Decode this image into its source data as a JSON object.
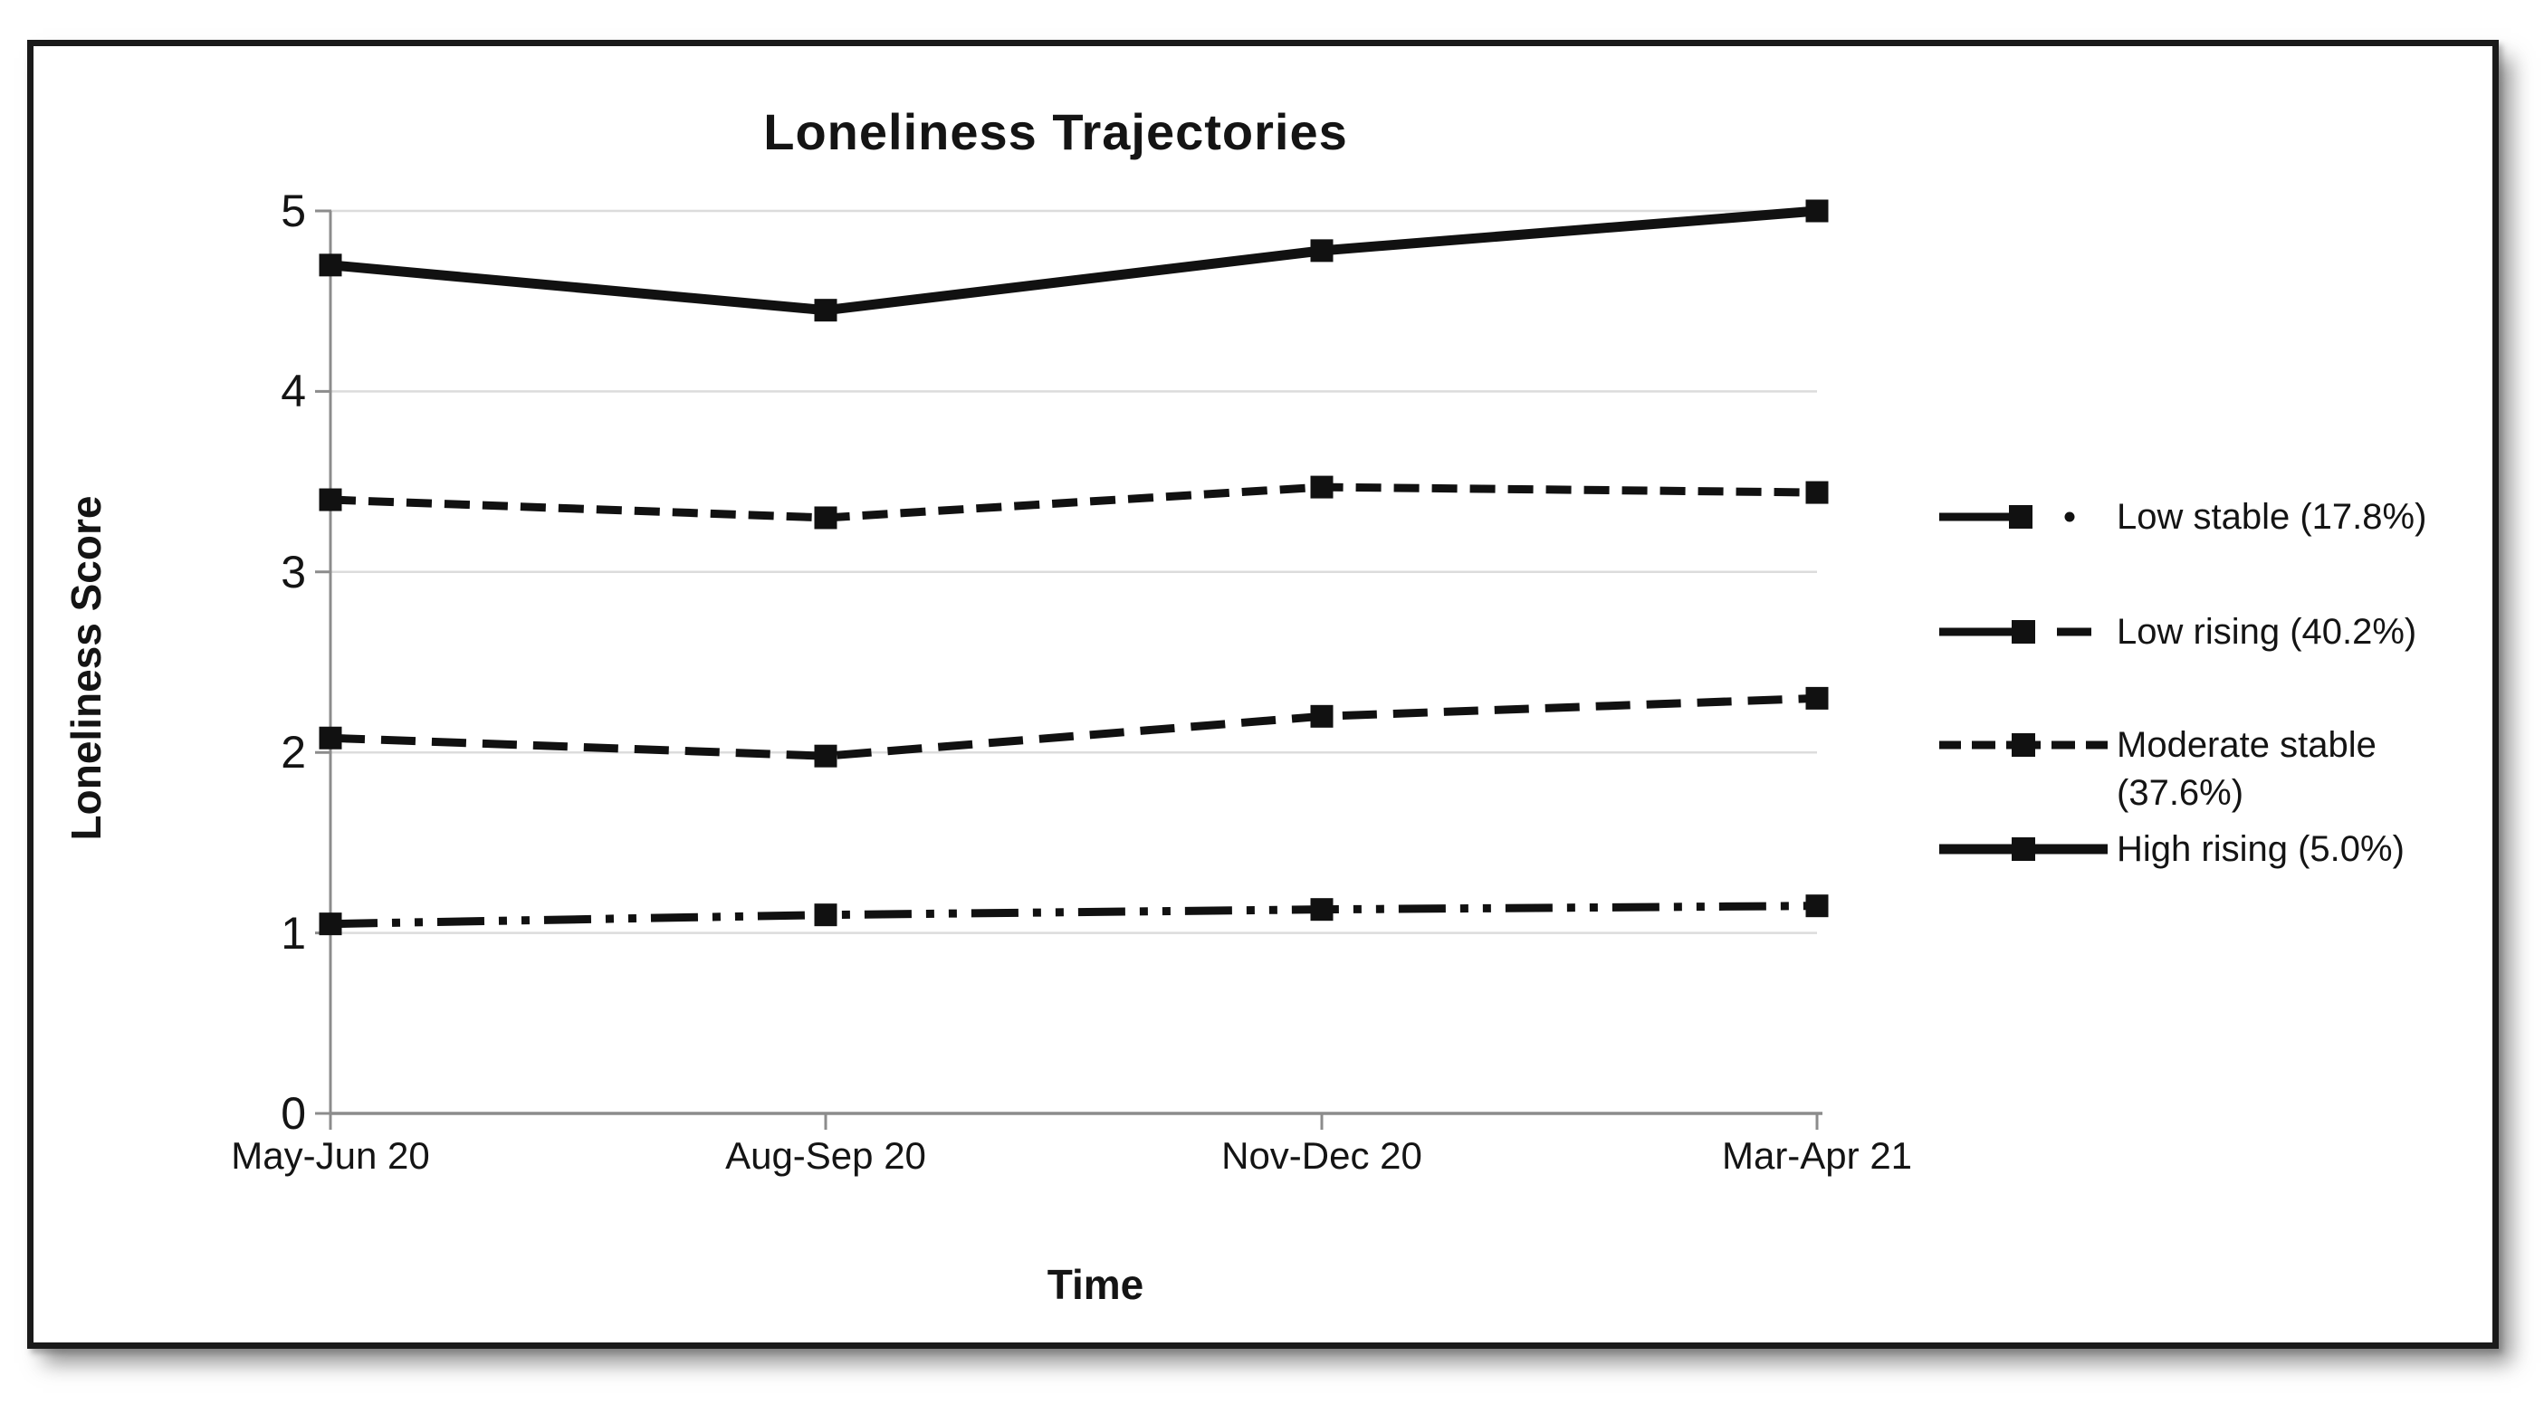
{
  "figure": {
    "background": "#ffffff",
    "frame_border_color": "#1a1a1a"
  },
  "chart_data": {
    "type": "line",
    "title": "Loneliness Trajectories",
    "xlabel": "Time",
    "ylabel": "Loneliness Score",
    "categories": [
      "May-Jun 20",
      "Aug-Sep 20",
      "Nov-Dec 20",
      "Mar-Apr 21"
    ],
    "yticks": [
      0,
      1,
      2,
      3,
      4,
      5
    ],
    "ylim": [
      0,
      5
    ],
    "grid": "horizontal",
    "legend_position": "right-outside",
    "marker": "filled-black-square",
    "colors": {
      "line": "#111111",
      "grid": "#dcdcdc",
      "axis": "#8c8c8c",
      "text": "#141414"
    },
    "series": [
      {
        "name": "Low stable (17.8%)",
        "style": "dash-dot-dot",
        "values": [
          1.05,
          1.1,
          1.13,
          1.15
        ]
      },
      {
        "name": "Low rising (40.2%)",
        "style": "long-dash",
        "values": [
          2.08,
          1.98,
          2.2,
          2.3
        ]
      },
      {
        "name": "Moderate stable (37.6%)",
        "style": "short-dash",
        "values": [
          3.4,
          3.3,
          3.47,
          3.44
        ]
      },
      {
        "name": "High rising (5.0%)",
        "style": "solid",
        "values": [
          4.7,
          4.45,
          4.78,
          5.0
        ]
      }
    ]
  }
}
